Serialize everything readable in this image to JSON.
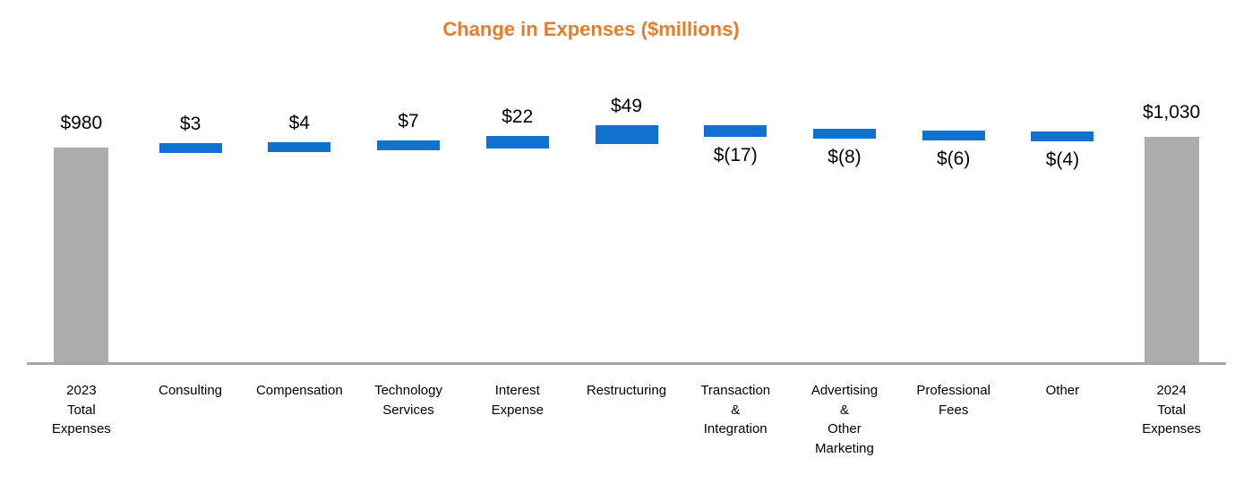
{
  "title": {
    "text": "Change in Expenses ($millions)",
    "color": "#E87C2B"
  },
  "chart_data": {
    "type": "waterfall",
    "title": "Change in Expenses ($millions)",
    "units": "$millions",
    "legend": "none",
    "gridlines": false,
    "y_axis_visible": false,
    "start_total": {
      "category": "2023 Total Expenses",
      "value": 980
    },
    "end_total": {
      "category": "2024 Total Expenses",
      "value": 1030
    },
    "categories": [
      "2023 Total Expenses",
      "Consulting",
      "Compensation",
      "Technology Services",
      "Interest Expense",
      "Restructuring",
      "Transaction & Integration",
      "Advertising & Other Marketing",
      "Professional Fees",
      "Other",
      "2024 Total Expenses"
    ],
    "items": [
      {
        "category": "2023 Total Expenses",
        "label_lines": [
          "2023",
          "Total",
          "Expenses"
        ],
        "kind": "total",
        "value": 980,
        "value_label": "$980"
      },
      {
        "category": "Consulting",
        "label_lines": [
          "Consulting"
        ],
        "kind": "delta",
        "value": 3,
        "value_label": "$3"
      },
      {
        "category": "Compensation",
        "label_lines": [
          "Compensation"
        ],
        "kind": "delta",
        "value": 4,
        "value_label": "$4"
      },
      {
        "category": "Technology Services",
        "label_lines": [
          "Technology",
          "Services"
        ],
        "kind": "delta",
        "value": 7,
        "value_label": "$7"
      },
      {
        "category": "Interest Expense",
        "label_lines": [
          "Interest",
          "Expense"
        ],
        "kind": "delta",
        "value": 22,
        "value_label": "$22"
      },
      {
        "category": "Restructuring",
        "label_lines": [
          "Restructuring"
        ],
        "kind": "delta",
        "value": 49,
        "value_label": "$49"
      },
      {
        "category": "Transaction & Integration",
        "label_lines": [
          "Transaction",
          "&",
          "Integration"
        ],
        "kind": "delta",
        "value": -17,
        "value_label": "$(17)"
      },
      {
        "category": "Advertising & Other Marketing",
        "label_lines": [
          "Advertising",
          "&",
          "Other",
          "Marketing"
        ],
        "kind": "delta",
        "value": -8,
        "value_label": "$(8)"
      },
      {
        "category": "Professional Fees",
        "label_lines": [
          "Professional",
          "Fees"
        ],
        "kind": "delta",
        "value": -6,
        "value_label": "$(6)"
      },
      {
        "category": "Other",
        "label_lines": [
          "Other"
        ],
        "kind": "delta",
        "value": -4,
        "value_label": "$(4)"
      },
      {
        "category": "2024 Total Expenses",
        "label_lines": [
          "2024",
          "Total",
          "Expenses"
        ],
        "kind": "total",
        "value": 1030,
        "value_label": "$1,030"
      }
    ],
    "colors": {
      "total_bar": "#ADADAD",
      "delta_bar": "#1071CE",
      "title_text": "#E87C2B",
      "axis_line": "#A6A6A6",
      "label_text": "#000000"
    }
  }
}
